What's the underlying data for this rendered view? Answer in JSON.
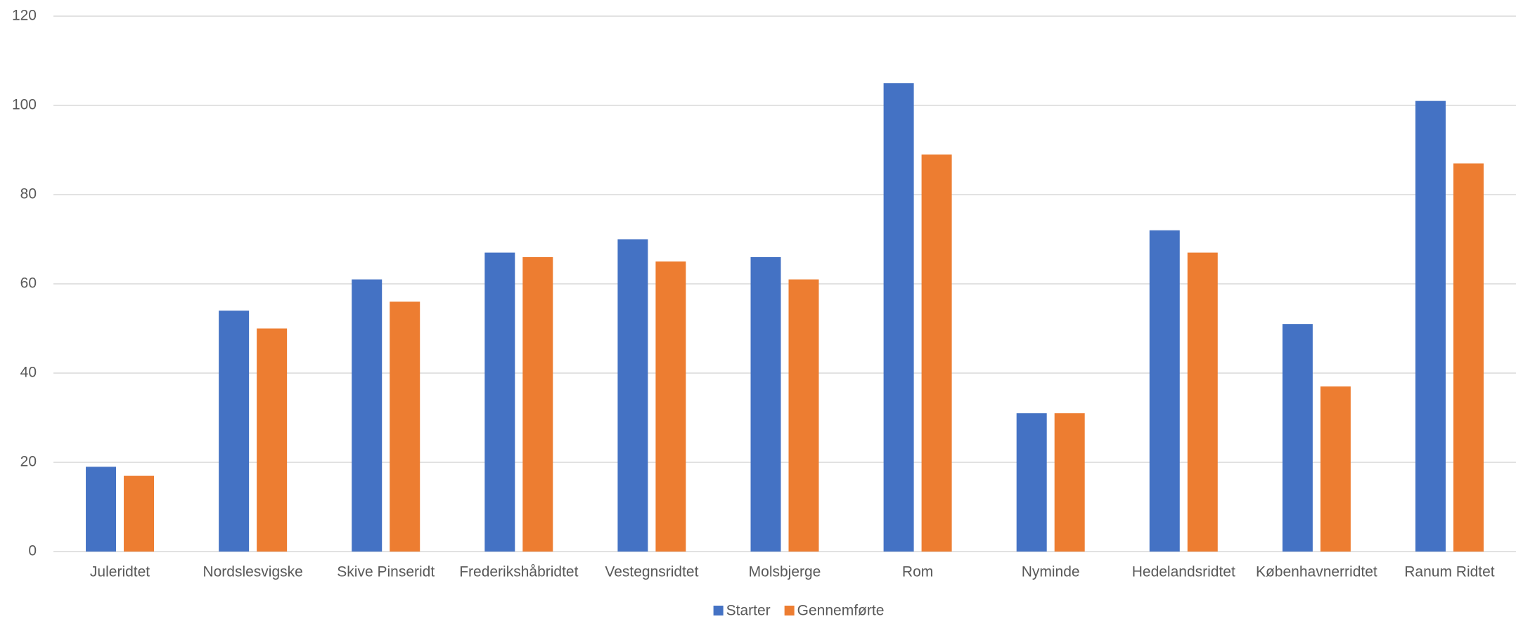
{
  "chart_data": {
    "type": "bar",
    "categories": [
      "Juleridtet",
      "Nordslesvigske",
      "Skive Pinseridt",
      "Frederikshåbridtet",
      "Vestegnsridtet",
      "Molsbjerge",
      "Rom",
      "Nyminde",
      "Hedelandsridtet",
      "Københavnerridtet",
      "Ranum Ridtet"
    ],
    "series": [
      {
        "name": "Starter",
        "color": "#4472c4",
        "values": [
          19,
          54,
          61,
          67,
          70,
          66,
          105,
          31,
          72,
          51,
          101
        ]
      },
      {
        "name": "Gennemførte",
        "color": "#ed7d31",
        "values": [
          17,
          50,
          56,
          66,
          65,
          61,
          89,
          31,
          67,
          37,
          87
        ]
      }
    ],
    "ylim": [
      0,
      120
    ],
    "yticks": [
      0,
      20,
      40,
      60,
      80,
      100,
      120
    ],
    "grid": true,
    "legend": "bottom"
  }
}
